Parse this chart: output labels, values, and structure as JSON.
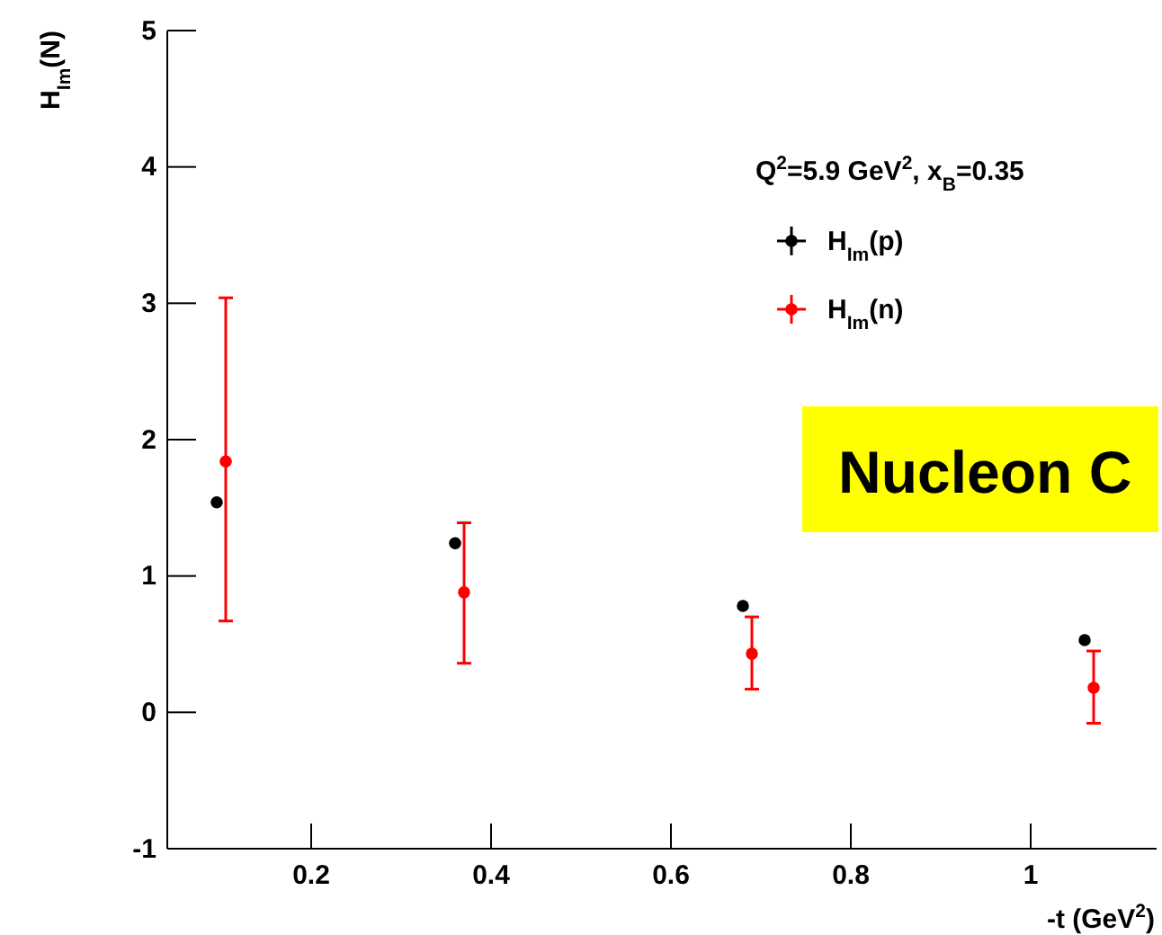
{
  "chart_data": {
    "type": "scatter",
    "xlabel": "-t (GeV$^{2}$)",
    "ylabel": "H$_{Im}$(N)",
    "legend_title": "Q$^{2}$=5.9 GeV$^{2}$, x$_{B}$=0.35",
    "annotations": [
      "Nucleon C"
    ],
    "xlim": [
      0.04,
      1.14
    ],
    "xticks": [
      0.2,
      0.4,
      0.6,
      0.8,
      1
    ],
    "ylim": [
      -1,
      5
    ],
    "yticks": [
      -1,
      0,
      1,
      2,
      3,
      4,
      5
    ],
    "legend": "top right",
    "marker": "circle",
    "grid": false,
    "series": [
      {
        "name": "H$_{Im}$(p)",
        "color": "#000000",
        "x": [
          0.095,
          0.36,
          0.68,
          1.06
        ],
        "values": [
          1.54,
          1.24,
          0.78,
          0.53
        ]
      },
      {
        "name": "H$_{Im}$(n)",
        "color": "#ff0000",
        "x": [
          0.105,
          0.37,
          0.69,
          1.07
        ],
        "values": [
          1.84,
          0.88,
          0.43,
          0.18
        ],
        "errors": [
          [
            0.67,
            3.04
          ],
          [
            0.36,
            1.39
          ],
          [
            0.17,
            0.7
          ],
          [
            -0.08,
            0.45
          ]
        ]
      }
    ]
  }
}
